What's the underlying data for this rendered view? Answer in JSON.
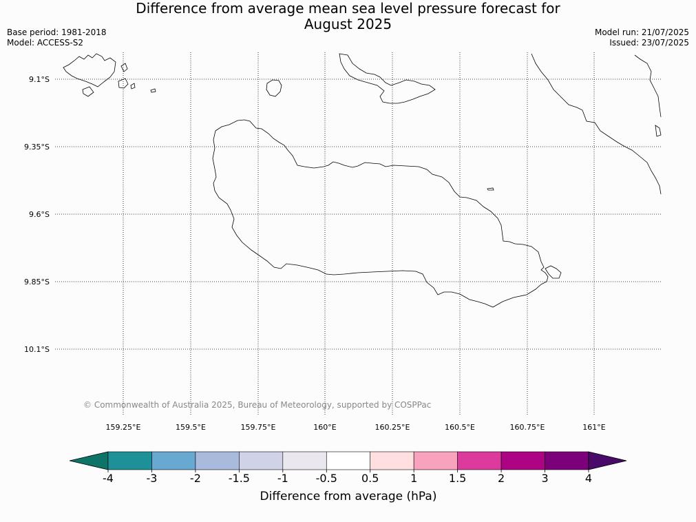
{
  "title_line1": "Difference from average mean sea level pressure forecast for",
  "title_line2": "August 2025",
  "base_period": "Base period: 1981-2018",
  "model": "Model: ACCESS-S2",
  "model_run": "Model run: 21/07/2025",
  "issued": "Issued: 23/07/2025",
  "credit": "© Commonwealth of Australia 2025, Bureau of Meteorology, supported by COSPPac",
  "lat_labels": [
    "9.1°S",
    "9.35°S",
    "9.6°S",
    "9.85°S",
    "10.1°S"
  ],
  "lon_labels": [
    "159.25°E",
    "159.5°E",
    "159.75°E",
    "160°E",
    "160.25°E",
    "160.5°E",
    "160.75°E",
    "161°E"
  ],
  "colorbar": {
    "label": "Difference from average (hPa)",
    "ticks": [
      "-4",
      "-3",
      "-2",
      "-1.5",
      "-1",
      "-0.5",
      "0.5",
      "1",
      "1.5",
      "2",
      "3",
      "4"
    ],
    "under_color": "#0e7468",
    "over_color": "#4a0a6a",
    "colors": [
      "#1e9198",
      "#67a9d1",
      "#a8bbdd",
      "#d0d3e8",
      "#eae8ee",
      "#ffffff",
      "#ffdfe0",
      "#f8a2bd",
      "#dc3a9c",
      "#ac0483",
      "#7c0079"
    ]
  }
}
